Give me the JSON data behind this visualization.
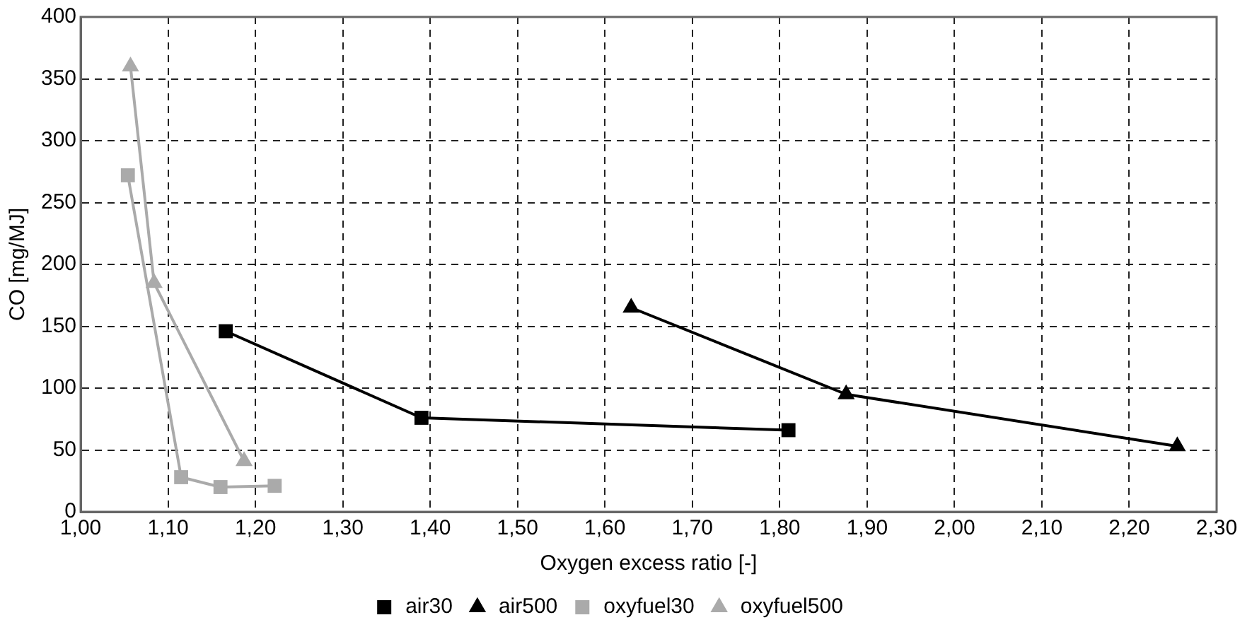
{
  "chart_data": {
    "type": "line",
    "xlabel": "Oxygen excess ratio [-]",
    "ylabel": "CO [mg/MJ]",
    "xlim": [
      1.0,
      2.3
    ],
    "xticks": [
      {
        "value": 1.0,
        "label": "1,00"
      },
      {
        "value": 1.1,
        "label": "1,10"
      },
      {
        "value": 1.2,
        "label": "1,20"
      },
      {
        "value": 1.3,
        "label": "1,30"
      },
      {
        "value": 1.4,
        "label": "1,40"
      },
      {
        "value": 1.5,
        "label": "1,50"
      },
      {
        "value": 1.6,
        "label": "1,60"
      },
      {
        "value": 1.7,
        "label": "1,70"
      },
      {
        "value": 1.8,
        "label": "1,80"
      },
      {
        "value": 1.9,
        "label": "1,90"
      },
      {
        "value": 2.0,
        "label": "2,00"
      },
      {
        "value": 2.1,
        "label": "2,10"
      },
      {
        "value": 2.2,
        "label": "2,20"
      },
      {
        "value": 2.3,
        "label": "2,30"
      }
    ],
    "ylim": [
      0,
      400
    ],
    "yticks": [
      0,
      50,
      100,
      150,
      200,
      250,
      300,
      350,
      400
    ],
    "grid": true,
    "legend": "bottom",
    "line_style": "solid",
    "series": [
      {
        "name": "air30",
        "color": "#000000",
        "marker": "square",
        "x": [
          1.166,
          1.39,
          1.81
        ],
        "values": [
          146,
          76,
          66
        ]
      },
      {
        "name": "air500",
        "color": "#000000",
        "marker": "triangle",
        "x": [
          1.63,
          1.876,
          2.255
        ],
        "values": [
          165,
          95,
          53
        ]
      },
      {
        "name": "oxyfuel30",
        "color": "#aaaaaa",
        "marker": "square",
        "x": [
          1.054,
          1.115,
          1.16,
          1.222
        ],
        "values": [
          272,
          28,
          20,
          21
        ]
      },
      {
        "name": "oxyfuel500",
        "color": "#aaaaaa",
        "marker": "triangle",
        "x": [
          1.057,
          1.084,
          1.187
        ],
        "values": [
          360,
          185,
          41
        ]
      }
    ]
  }
}
